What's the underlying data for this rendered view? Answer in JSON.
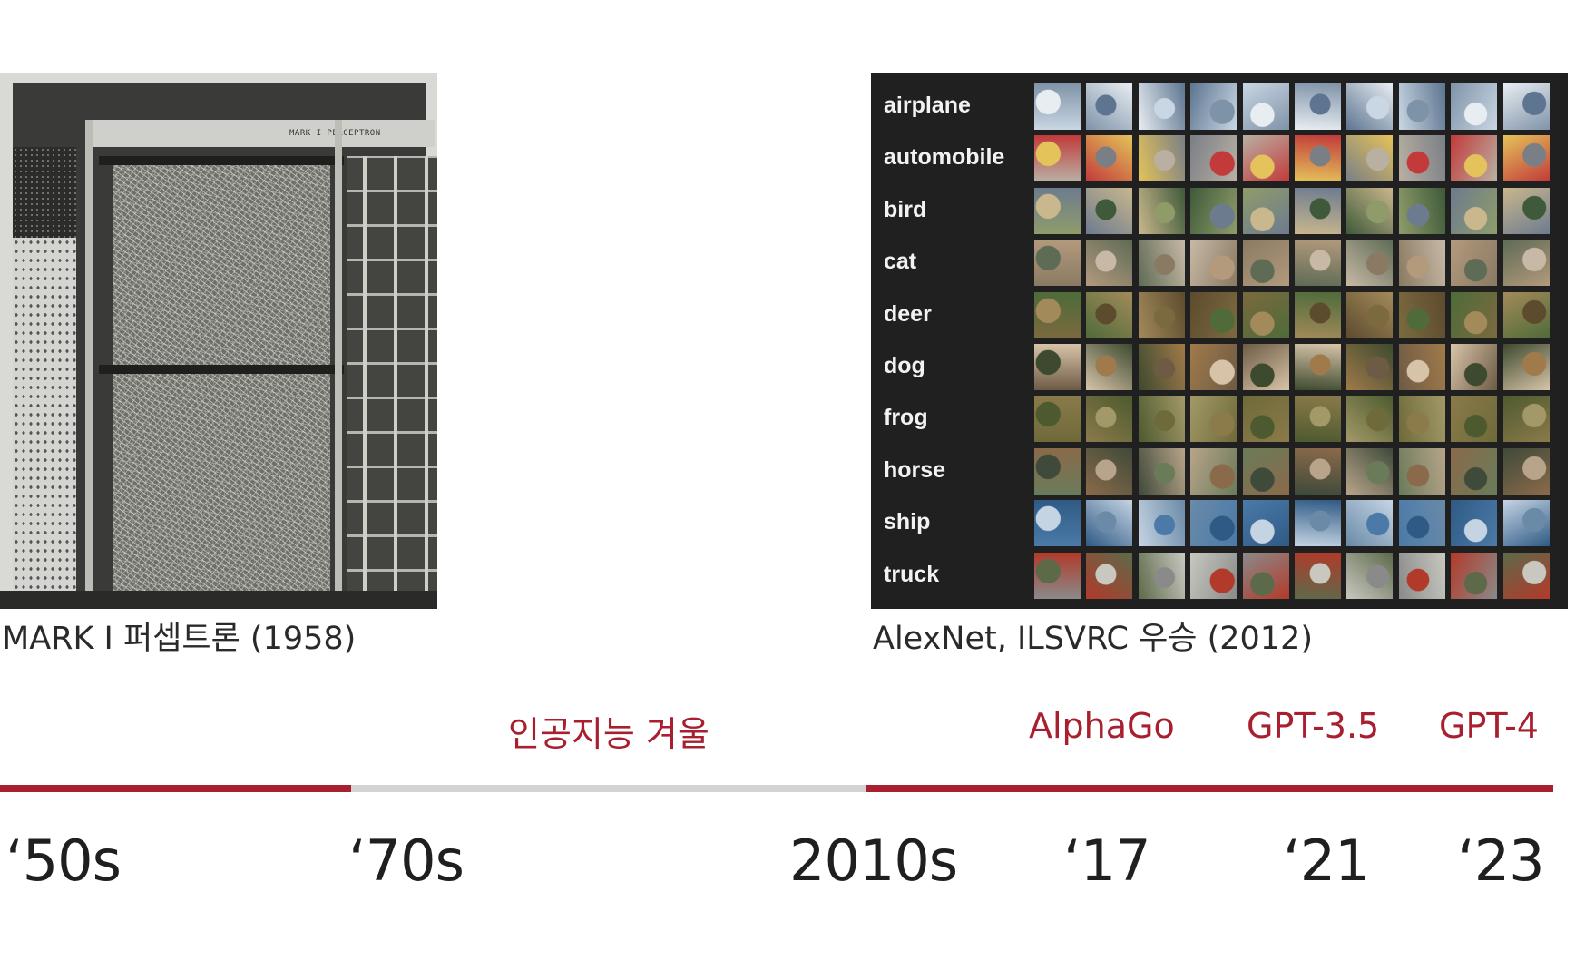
{
  "perceptron_photo": {
    "caption": "MARK I 퍼셉트론 (1958)",
    "plate_text": "MARK I PERCEPTRON"
  },
  "cifar_photo": {
    "caption": "AlexNet, ILSVRC 우승 (2012)",
    "classes": [
      "airplane",
      "automobile",
      "bird",
      "cat",
      "deer",
      "dog",
      "frog",
      "horse",
      "ship",
      "truck"
    ]
  },
  "timeline": {
    "events": [
      {
        "label": "인공지능 겨울"
      },
      {
        "label": "AlphaGo"
      },
      {
        "label": "GPT-3.5"
      },
      {
        "label": "GPT-4"
      }
    ],
    "segments": [
      {
        "status": "active",
        "color": "#a8202f"
      },
      {
        "status": "winter",
        "color": "#d3d3d3"
      },
      {
        "status": "active",
        "color": "#a8202f"
      }
    ],
    "eras": [
      "‘50s",
      "‘70s",
      "2010s",
      "‘17",
      "‘21",
      "‘23"
    ]
  }
}
